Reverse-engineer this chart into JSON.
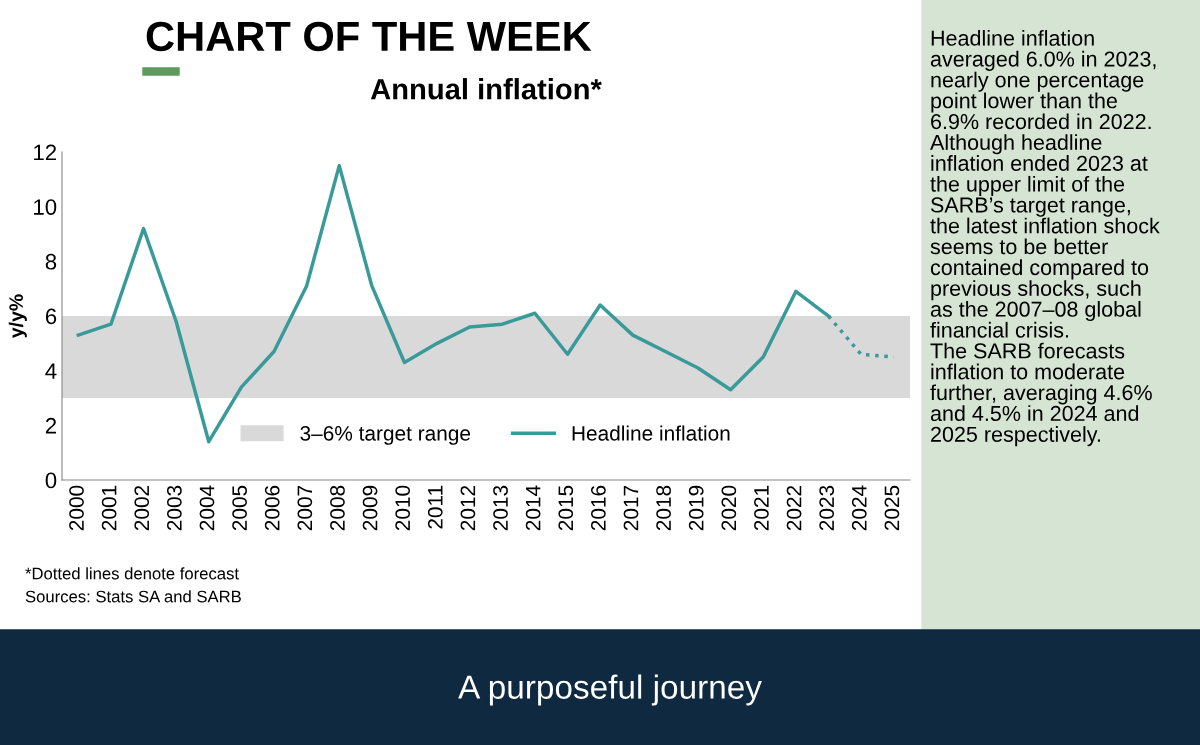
{
  "chart_data": {
    "type": "line",
    "title": "Annual inflation*",
    "ylabel": "y/y%",
    "categories": [
      "2000",
      "2001",
      "2002",
      "2003",
      "2004",
      "2005",
      "2006",
      "2007",
      "2008",
      "2009",
      "2010",
      "2011",
      "2012",
      "2013",
      "2014",
      "2015",
      "2016",
      "2017",
      "2018",
      "2019",
      "2020",
      "2021",
      "2022",
      "2023",
      "2024",
      "2025"
    ],
    "series": [
      {
        "name": "Headline inflation",
        "color": "#3a9a9a",
        "line_style": "solid",
        "values": [
          5.3,
          5.7,
          9.2,
          5.8,
          1.4,
          3.4,
          4.7,
          7.1,
          11.5,
          7.1,
          4.3,
          5.0,
          5.6,
          5.7,
          6.1,
          4.6,
          6.4,
          5.3,
          4.7,
          4.1,
          3.3,
          4.5,
          6.9,
          6.0,
          null,
          null
        ]
      },
      {
        "color": "#3a9a9a",
        "line_style": "dotted",
        "values": [
          null,
          null,
          null,
          null,
          null,
          null,
          null,
          null,
          null,
          null,
          null,
          null,
          null,
          null,
          null,
          null,
          null,
          null,
          null,
          null,
          null,
          null,
          null,
          6.0,
          4.6,
          4.5
        ]
      }
    ],
    "bands": [
      {
        "axis": "y",
        "from": 3,
        "to": 6,
        "label": "3–6% target range",
        "color": "#d9d9d9"
      }
    ],
    "ylim": [
      0,
      12
    ],
    "yticks": [
      0,
      2,
      4,
      6,
      8,
      10,
      12
    ],
    "grid": false,
    "legend": "bottom",
    "annotations": [
      "CHART OF THE WEEK",
      "*Dotted lines denote forecast",
      "Sources: Stats SA and SARB",
      "Headline inflation\naveraged 6.0% in 2023,\nnearly one percentage\npoint lower than the\n6.9% recorded in 2022.\nAlthough headline\ninflation ended 2023 at\nthe upper limit of the\nSARB’s target range,\nthe latest inflation shock\nseems to be better\ncontained compared to\nprevious shocks, such\nas the 2007–08 global\nfinancial crisis.\nThe SARB forecasts\ninflation to moderate\nfurther, averaging 4.6%\nand 4.5% in 2024 and\n2025 respectively.",
      "A purposeful journey"
    ]
  }
}
